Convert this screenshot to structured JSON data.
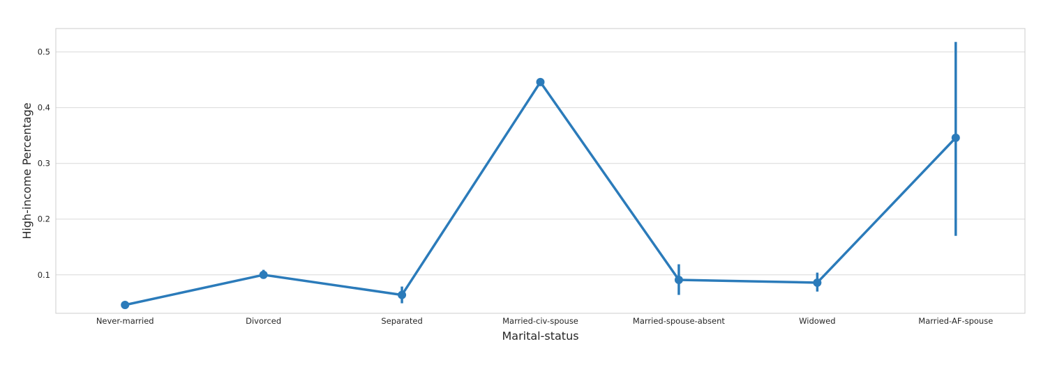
{
  "chart_data": {
    "type": "line",
    "xlabel": "Marital-status",
    "ylabel": "High-income Percentage",
    "categories": [
      "Never-married",
      "Divorced",
      "Separated",
      "Married-civ-spouse",
      "Married-spouse-absent",
      "Widowed",
      "Married-AF-spouse"
    ],
    "series": [
      {
        "values": [
          0.046,
          0.1,
          0.064,
          0.446,
          0.091,
          0.086,
          0.346
        ],
        "ci_low": [
          0.042,
          0.093,
          0.049,
          0.441,
          0.064,
          0.07,
          0.17
        ],
        "ci_high": [
          0.049,
          0.109,
          0.079,
          0.451,
          0.119,
          0.104,
          0.518
        ]
      }
    ],
    "ylim": [
      0.031,
      0.542
    ],
    "yticks": [
      0.1,
      0.2,
      0.3,
      0.4,
      0.5
    ],
    "ytick_labels": [
      "0.1",
      "0.2",
      "0.3",
      "0.4",
      "0.5"
    ],
    "grid": "horizontal",
    "colors": {
      "series": "#2b7bba",
      "grid": "#d9d9d9",
      "frame": "#cccccc",
      "text": "#262626"
    }
  }
}
